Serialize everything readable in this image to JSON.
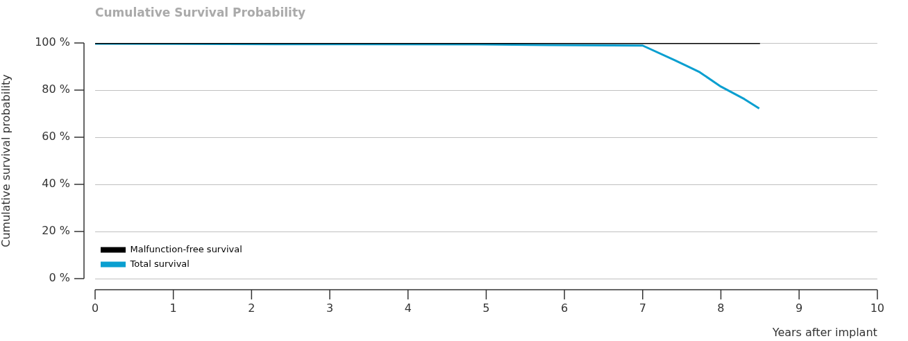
{
  "chart_data": {
    "type": "line",
    "title": "Cumulative Survival Probability",
    "xlabel": "Years after implant",
    "ylabel": "Cumulative survival probability",
    "xlim": [
      0,
      10
    ],
    "xticks": [
      0,
      1,
      2,
      3,
      4,
      5,
      6,
      7,
      8,
      9,
      10
    ],
    "ylim": [
      0,
      100
    ],
    "yticks": [
      {
        "value": 0,
        "label": "0 %"
      },
      {
        "value": 20,
        "label": "20 %"
      },
      {
        "value": 40,
        "label": "40 %"
      },
      {
        "value": 60,
        "label": "60 %"
      },
      {
        "value": 80,
        "label": "80 %"
      },
      {
        "value": 100,
        "label": "100 %"
      }
    ],
    "grid": "y",
    "legend": "bottom left",
    "marker": "none",
    "line_style": "solid",
    "series": [
      {
        "name": "Malfunction-free survival",
        "color": "#000000",
        "x": [
          0,
          8.5
        ],
        "values": [
          100,
          100
        ]
      },
      {
        "name": "Total survival",
        "color": "#0a9fd0",
        "x": [
          0,
          2.3,
          4.9,
          5.8,
          7.0,
          7.41,
          7.55,
          7.73,
          8.0,
          8.3,
          8.49
        ],
        "values": [
          99.7,
          99.5,
          99.4,
          99.1,
          98.9,
          92.7,
          90.5,
          87.6,
          81.5,
          76.2,
          72.2
        ]
      }
    ]
  }
}
